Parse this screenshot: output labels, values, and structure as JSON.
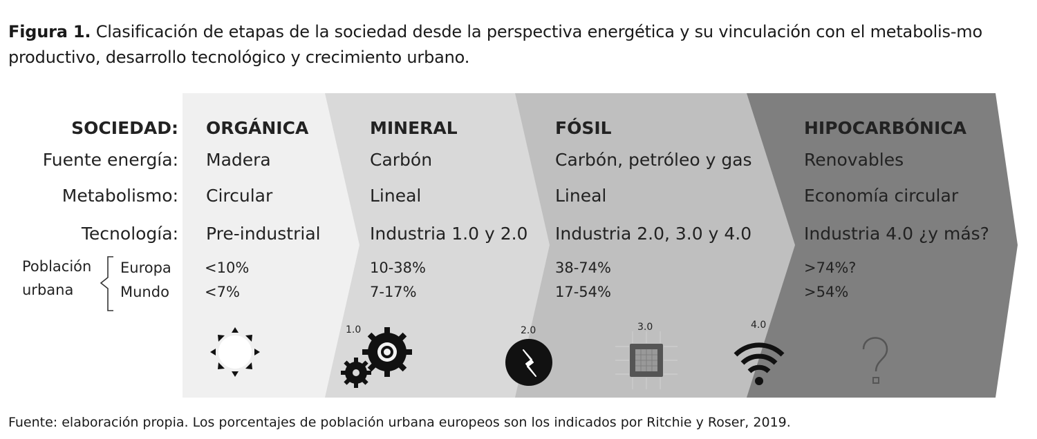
{
  "caption": {
    "bold": "Figura 1.",
    "text": " Clasificación de etapas de la sociedad desde la perspectiva energética y su vinculación con el metabolis-mo productivo, desarrollo tecnológico y crecimiento urbano."
  },
  "row_labels": {
    "sociedad": "SOCIEDAD:",
    "fuente": "Fuente energía:",
    "metabolismo": "Metabolismo:",
    "tecnologia": "Tecnología:",
    "poblacion_1": "Población",
    "poblacion_2": "urbana",
    "europa": "Europa",
    "mundo": "Mundo"
  },
  "stages": [
    {
      "name": "ORGÁNICA",
      "fuente": "Madera",
      "metabolismo": "Circular",
      "tecnologia": "Pre-industrial",
      "europa": "<10%",
      "mundo": "<7%",
      "fill": "#f0f0f0"
    },
    {
      "name": "MINERAL",
      "fuente": "Carbón",
      "metabolismo": "Lineal",
      "tecnologia": "Industria 1.0 y 2.0",
      "europa": "10-38%",
      "mundo": "7-17%",
      "fill": "#d9d9d9"
    },
    {
      "name": "FÓSIL",
      "fuente": "Carbón, petróleo y gas",
      "metabolismo": "Lineal",
      "tecnologia": "Industria 2.0, 3.0 y 4.0",
      "europa": "38-74%",
      "mundo": "17-54%",
      "fill": "#bfbfbf"
    },
    {
      "name": "HIPOCARBÓNICA",
      "fuente": "Renovables",
      "metabolismo": "Economía circular",
      "tecnologia": "Industria 4.0 ¿y más?",
      "europa": ">74%?",
      "mundo": ">54%",
      "fill": "#7f7f7f"
    }
  ],
  "icons": [
    {
      "name": "sun-icon",
      "label": ""
    },
    {
      "name": "gears-icon",
      "label": "1.0"
    },
    {
      "name": "electricity-icon",
      "label": "2.0"
    },
    {
      "name": "chip-icon",
      "label": "3.0"
    },
    {
      "name": "wifi-icon",
      "label": "4.0"
    },
    {
      "name": "question-icon",
      "label": ""
    }
  ],
  "footer": "Fuente: elaboración propia. Los porcentajes de población urbana europeos son los indicados por  Ritchie y Roser, 2019."
}
